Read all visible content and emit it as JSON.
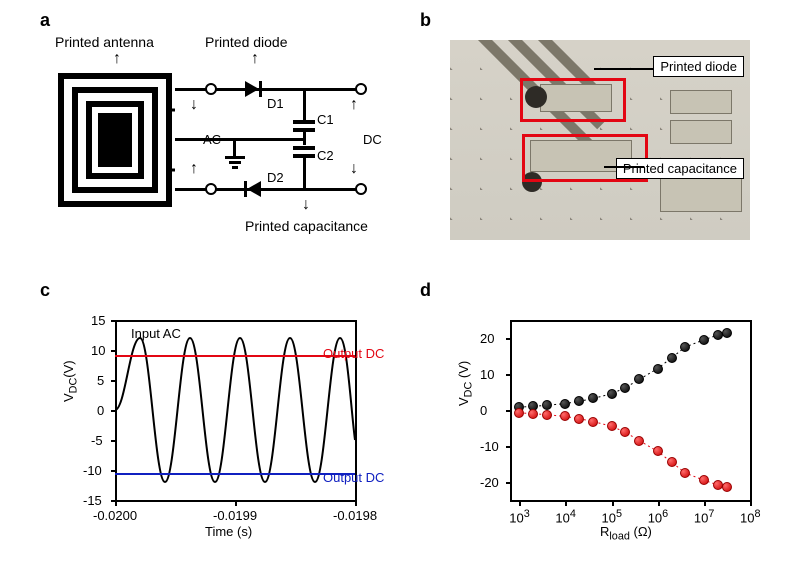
{
  "labels": {
    "a": "a",
    "b": "b",
    "c": "c",
    "d": "d"
  },
  "panel_a": {
    "type": "diagram",
    "captions": {
      "antenna": "Printed antenna",
      "diode": "Printed diode",
      "cap": "Printed capacitance",
      "d1": "D1",
      "d2": "D2",
      "c1": "C1",
      "c2": "C2",
      "ac": "AC",
      "dc": "DC"
    },
    "colors": {
      "line": "#000000",
      "bg": "#ffffff"
    },
    "line_width": 3
  },
  "panel_b": {
    "type": "photo",
    "boxes": {
      "diode": "Printed diode",
      "cap": "Printed capacitance"
    },
    "box_color": "#e30613",
    "background_color": "#b9b5ad"
  },
  "panel_c": {
    "type": "line",
    "title": "",
    "xlabel": "Time (s)",
    "ylabel": "V_DC(V)",
    "x_ticks": [
      "-0.0200",
      "-0.0199",
      "-0.0198"
    ],
    "y_ticks": [
      "-15",
      "-10",
      "-5",
      "0",
      "5",
      "10",
      "15"
    ],
    "ylim": [
      -15,
      15
    ],
    "xlim": [
      -0.02,
      -0.0198
    ],
    "series": {
      "input_ac": {
        "label": "Input AC",
        "color": "#000000",
        "amp": 12,
        "offset": 0,
        "periods": 3
      },
      "out_pos": {
        "label": "Output DC",
        "color": "#e30613",
        "value": 9.2
      },
      "out_neg": {
        "label": "Output DC",
        "color": "#1020c0",
        "value": -10.6
      }
    },
    "label_fontsize": 13,
    "background_color": "#ffffff"
  },
  "panel_d": {
    "type": "scatter",
    "xlabel": "R_load (Ω)",
    "ylabel": "V_DC (V)",
    "x_ticks": [
      "10^3",
      "10^4",
      "10^5",
      "10^6",
      "10^7",
      "10^8"
    ],
    "x_tick_vals": [
      3,
      4,
      5,
      6,
      7,
      8
    ],
    "y_ticks": [
      "-20",
      "-10",
      "0",
      "10",
      "20"
    ],
    "ylim": [
      -25,
      25
    ],
    "xlim_log": [
      2.8,
      8
    ],
    "series": {
      "pos": {
        "color": "#000000",
        "marker": "circle",
        "x_log": [
          3.0,
          3.3,
          3.6,
          4.0,
          4.3,
          4.6,
          5.0,
          5.3,
          5.6,
          6.0,
          6.3,
          6.6,
          7.0,
          7.3,
          7.5
        ],
        "y": [
          0.8,
          1.0,
          1.3,
          1.8,
          2.4,
          3.2,
          4.5,
          6.2,
          8.5,
          11.5,
          14.5,
          17.5,
          19.5,
          20.8,
          21.5
        ]
      },
      "neg": {
        "color": "#e30613",
        "marker": "circle",
        "x_log": [
          3.0,
          3.3,
          3.6,
          4.0,
          4.3,
          4.6,
          5.0,
          5.3,
          5.6,
          6.0,
          6.3,
          6.6,
          7.0,
          7.3,
          7.5
        ],
        "y": [
          -0.8,
          -1.0,
          -1.3,
          -1.8,
          -2.4,
          -3.2,
          -4.5,
          -6.2,
          -8.5,
          -11.5,
          -14.5,
          -17.5,
          -19.5,
          -20.8,
          -21.5
        ]
      }
    },
    "marker_size": 10,
    "line_style": "dotted",
    "label_fontsize": 13,
    "background_color": "#ffffff"
  }
}
